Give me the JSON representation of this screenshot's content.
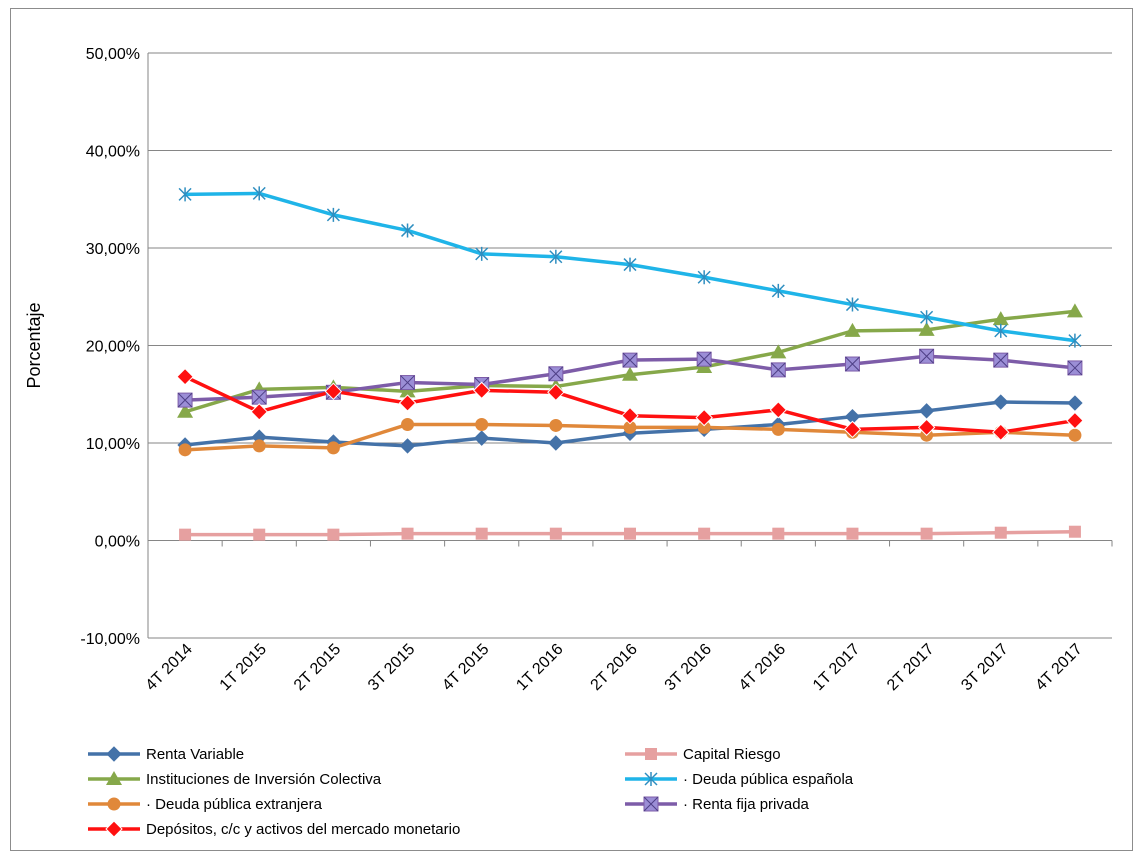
{
  "chart_data": {
    "type": "line",
    "ylabel": "Porcentaje",
    "ylim": [
      -10,
      50
    ],
    "y_tick_step": 10,
    "y_tick_format": "percent_2dec_comma",
    "grid": "horizontal",
    "legend_position": "bottom",
    "categories": [
      "4T 2014",
      "1T 2015",
      "2T 2015",
      "3T 2015",
      "4T 2015",
      "1T 2016",
      "2T 2016",
      "3T 2016",
      "4T 2016",
      "1T 2017",
      "2T 2017",
      "3T 2017",
      "4T 2017"
    ],
    "series": [
      {
        "name": "Renta Variable",
        "color": "#4472a8",
        "marker": "diamond",
        "values": [
          9.8,
          10.6,
          10.1,
          9.7,
          10.5,
          10.0,
          11.0,
          11.4,
          11.9,
          12.7,
          13.3,
          14.2,
          14.1
        ]
      },
      {
        "name": "Capital Riesgo",
        "color": "#e6a0a0",
        "marker": "square",
        "values": [
          0.6,
          0.6,
          0.6,
          0.7,
          0.7,
          0.7,
          0.7,
          0.7,
          0.7,
          0.7,
          0.7,
          0.8,
          0.9
        ]
      },
      {
        "name": "Instituciones de Inversión Colectiva",
        "color": "#86a84a",
        "marker": "triangle",
        "values": [
          13.2,
          15.5,
          15.7,
          15.3,
          15.9,
          15.8,
          17.0,
          17.8,
          19.3,
          21.5,
          21.6,
          22.7,
          23.5
        ]
      },
      {
        "name": "· Deuda pública española",
        "color": "#1fb4e8",
        "marker": "asterisk",
        "values": [
          35.5,
          35.6,
          33.4,
          31.8,
          29.4,
          29.1,
          28.3,
          27.0,
          25.6,
          24.2,
          22.9,
          21.5,
          20.5
        ]
      },
      {
        "name": "· Deuda pública extranjera",
        "color": "#e0883a",
        "marker": "circle",
        "values": [
          9.3,
          9.7,
          9.5,
          11.9,
          11.9,
          11.8,
          11.6,
          11.6,
          11.4,
          11.1,
          10.8,
          11.1,
          10.8
        ]
      },
      {
        "name": "· Renta fija privada",
        "color": "#7d5ca8",
        "marker": "xsquare",
        "values": [
          14.4,
          14.7,
          15.2,
          16.2,
          16.0,
          17.1,
          18.5,
          18.6,
          17.5,
          18.1,
          18.9,
          18.5,
          17.7
        ]
      },
      {
        "name": "Depósitos, c/c y activos del mercado monetario",
        "color": "#ff1010",
        "marker": "diamondred",
        "values": [
          16.8,
          13.2,
          15.3,
          14.1,
          15.4,
          15.2,
          12.8,
          12.6,
          13.4,
          11.4,
          11.6,
          11.1,
          12.3
        ]
      }
    ]
  }
}
